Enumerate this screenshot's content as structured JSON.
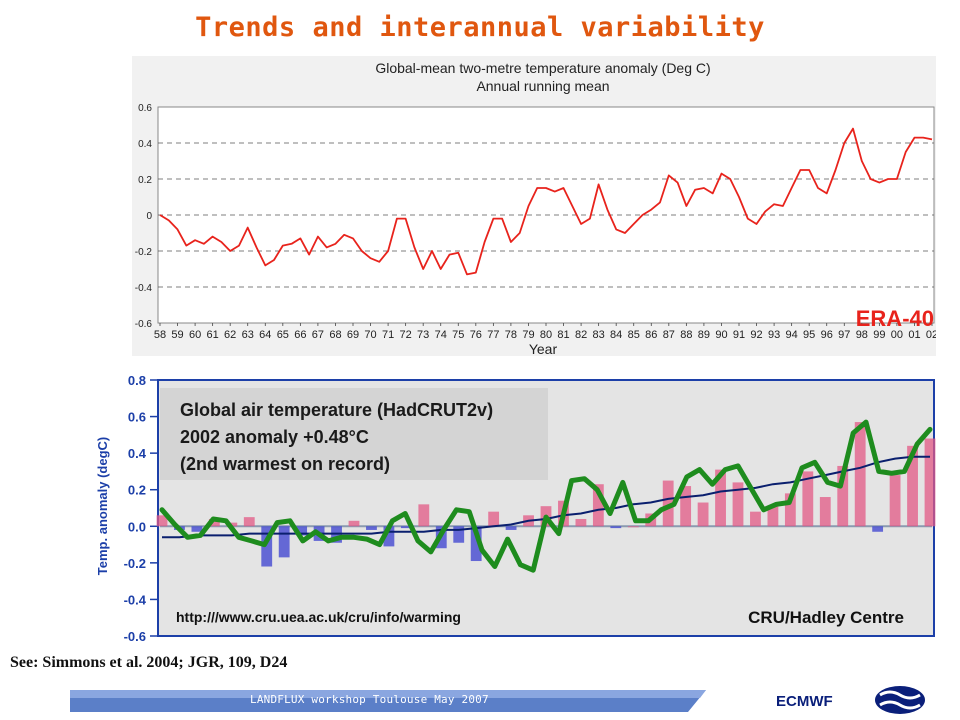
{
  "slide_title": "Trends and interannual variability",
  "reference": "See: Simmons et al. 2004; JGR, 109, D24",
  "footer": {
    "text": "LANDFLUX workshop Toulouse May 2007",
    "org": "ECMWF"
  },
  "colors": {
    "title": "#e0570f",
    "era_line": "#e8231c",
    "hadcrut_smoothed": "#1e8c1e",
    "trend": "#0a1f6e"
  },
  "chart_data": [
    {
      "type": "line",
      "title": "Global-mean two-metre temperature anomaly (Deg C)",
      "subtitle": "Annual running mean",
      "xlabel": "Year",
      "ylabel": "",
      "series_label": "ERA-40",
      "xlim": [
        1958,
        2002
      ],
      "ylim": [
        -0.6,
        0.6
      ],
      "yticks": [
        0.6,
        0.4,
        0.2,
        0,
        -0.2,
        -0.4,
        -0.6
      ],
      "ytick_labels": [
        "0.6",
        "0.4",
        "0.2",
        "0",
        "-0.2",
        "-0.4",
        "-0.6"
      ],
      "xtick_labels": [
        "58",
        "59",
        "60",
        "61",
        "62",
        "63",
        "64",
        "65",
        "66",
        "67",
        "68",
        "69",
        "70",
        "71",
        "72",
        "73",
        "74",
        "75",
        "76",
        "77",
        "78",
        "79",
        "80",
        "81",
        "82",
        "83",
        "84",
        "85",
        "86",
        "87",
        "88",
        "89",
        "90",
        "91",
        "92",
        "93",
        "94",
        "95",
        "96",
        "97",
        "98",
        "99",
        "00",
        "01",
        "02"
      ],
      "grid": "dashed horizontal",
      "x": [
        1958.0,
        1958.5,
        1959.0,
        1959.5,
        1960.0,
        1960.5,
        1961.0,
        1961.5,
        1962.0,
        1962.5,
        1963.0,
        1963.5,
        1964.0,
        1964.5,
        1965.0,
        1965.5,
        1966.0,
        1966.5,
        1967.0,
        1967.5,
        1968.0,
        1968.5,
        1969.0,
        1969.5,
        1970.0,
        1970.5,
        1971.0,
        1971.5,
        1972.0,
        1972.5,
        1973.0,
        1973.5,
        1974.0,
        1974.5,
        1975.0,
        1975.5,
        1976.0,
        1976.5,
        1977.0,
        1977.5,
        1978.0,
        1978.5,
        1979.0,
        1979.5,
        1980.0,
        1980.5,
        1981.0,
        1981.5,
        1982.0,
        1982.5,
        1983.0,
        1983.5,
        1984.0,
        1984.5,
        1985.0,
        1985.5,
        1986.0,
        1986.5,
        1987.0,
        1987.5,
        1988.0,
        1988.5,
        1989.0,
        1989.5,
        1990.0,
        1990.5,
        1991.0,
        1991.5,
        1992.0,
        1992.5,
        1993.0,
        1993.5,
        1994.0,
        1994.5,
        1995.0,
        1995.5,
        1996.0,
        1996.5,
        1997.0,
        1997.5,
        1998.0,
        1998.5,
        1999.0,
        1999.5,
        2000.0,
        2000.5,
        2001.0,
        2001.5,
        2002.0
      ],
      "y": [
        0.0,
        -0.03,
        -0.08,
        -0.17,
        -0.14,
        -0.16,
        -0.12,
        -0.15,
        -0.2,
        -0.17,
        -0.07,
        -0.18,
        -0.28,
        -0.25,
        -0.17,
        -0.16,
        -0.13,
        -0.22,
        -0.12,
        -0.18,
        -0.16,
        -0.11,
        -0.13,
        -0.2,
        -0.24,
        -0.26,
        -0.2,
        -0.02,
        -0.02,
        -0.18,
        -0.3,
        -0.2,
        -0.3,
        -0.22,
        -0.21,
        -0.33,
        -0.32,
        -0.15,
        -0.02,
        -0.02,
        -0.15,
        -0.1,
        0.05,
        0.15,
        0.15,
        0.13,
        0.15,
        0.05,
        -0.05,
        -0.02,
        0.17,
        0.03,
        -0.08,
        -0.1,
        -0.05,
        0.0,
        0.03,
        0.07,
        0.22,
        0.18,
        0.05,
        0.14,
        0.15,
        0.12,
        0.23,
        0.2,
        0.1,
        -0.02,
        -0.05,
        0.02,
        0.06,
        0.05,
        0.15,
        0.25,
        0.25,
        0.15,
        0.12,
        0.25,
        0.4,
        0.48,
        0.3,
        0.2,
        0.18,
        0.2,
        0.2,
        0.35,
        0.43,
        0.43,
        0.42
      ]
    },
    {
      "type": "bar",
      "title": "Global air temperature (HadCRUT2v)",
      "subtitle": "2002 anomaly +0.48°C",
      "note": "(2nd warmest on record)",
      "ylabel": "Temp. anomaly (degC)",
      "xlabel": "",
      "ylim": [
        -0.6,
        0.8
      ],
      "yticks": [
        0.8,
        0.6,
        0.4,
        0.2,
        0.0,
        -0.2,
        -0.4,
        -0.6
      ],
      "ytick_labels": [
        "0.8",
        "0.6",
        "0.4",
        "0.2",
        "0.0",
        "-0.2",
        "-0.4",
        "-0.6"
      ],
      "xlim": [
        1958,
        2002
      ],
      "url_text": "http:///www.cru.uea.ac.uk/cru/info/warming",
      "credit": "CRU/Hadley Centre",
      "years": [
        1958,
        1959,
        1960,
        1961,
        1962,
        1963,
        1964,
        1965,
        1966,
        1967,
        1968,
        1969,
        1970,
        1971,
        1972,
        1973,
        1974,
        1975,
        1976,
        1977,
        1978,
        1979,
        1980,
        1981,
        1982,
        1983,
        1984,
        1985,
        1986,
        1987,
        1988,
        1989,
        1990,
        1991,
        1992,
        1993,
        1994,
        1995,
        1996,
        1997,
        1998,
        1999,
        2000,
        2001,
        2002
      ],
      "values": [
        0.06,
        -0.02,
        -0.03,
        0.04,
        0.02,
        0.05,
        -0.22,
        -0.17,
        -0.05,
        -0.08,
        -0.09,
        0.03,
        -0.02,
        -0.11,
        -0.01,
        0.12,
        -0.12,
        -0.09,
        -0.19,
        0.08,
        -0.02,
        0.06,
        0.11,
        0.14,
        0.04,
        0.23,
        -0.01,
        0.0,
        0.07,
        0.25,
        0.22,
        0.13,
        0.31,
        0.24,
        0.08,
        0.11,
        0.18,
        0.3,
        0.16,
        0.33,
        0.57,
        -0.03,
        0.28,
        0.44,
        0.48
      ],
      "smoothed_series": [
        0.09,
        0.01,
        -0.06,
        -0.05,
        0.04,
        0.03,
        -0.06,
        -0.08,
        -0.1,
        0.02,
        0.03,
        -0.08,
        -0.03,
        -0.08,
        -0.06,
        -0.06,
        -0.07,
        -0.1,
        0.03,
        0.07,
        -0.08,
        -0.14,
        -0.02,
        0.09,
        0.08,
        -0.13,
        -0.22,
        -0.07,
        -0.21,
        -0.24,
        0.05,
        -0.04,
        0.25,
        0.26,
        0.2,
        0.07,
        0.24,
        0.03,
        0.03,
        0.09,
        0.12,
        0.27,
        0.31,
        0.23,
        0.31,
        0.33,
        0.21,
        0.09,
        0.12,
        0.13,
        0.32,
        0.35,
        0.24,
        0.22,
        0.51,
        0.57,
        0.3,
        0.29,
        0.3,
        0.45,
        0.53
      ],
      "trend": [
        -0.06,
        -0.06,
        -0.05,
        -0.05,
        -0.05,
        -0.04,
        -0.04,
        -0.04,
        -0.04,
        -0.04,
        -0.04,
        -0.04,
        -0.04,
        -0.03,
        -0.03,
        -0.03,
        -0.02,
        -0.02,
        -0.01,
        0.0,
        0.01,
        0.03,
        0.04,
        0.06,
        0.07,
        0.09,
        0.1,
        0.12,
        0.13,
        0.15,
        0.16,
        0.17,
        0.19,
        0.2,
        0.21,
        0.23,
        0.24,
        0.26,
        0.28,
        0.3,
        0.32,
        0.35,
        0.37,
        0.38,
        0.38
      ]
    }
  ]
}
